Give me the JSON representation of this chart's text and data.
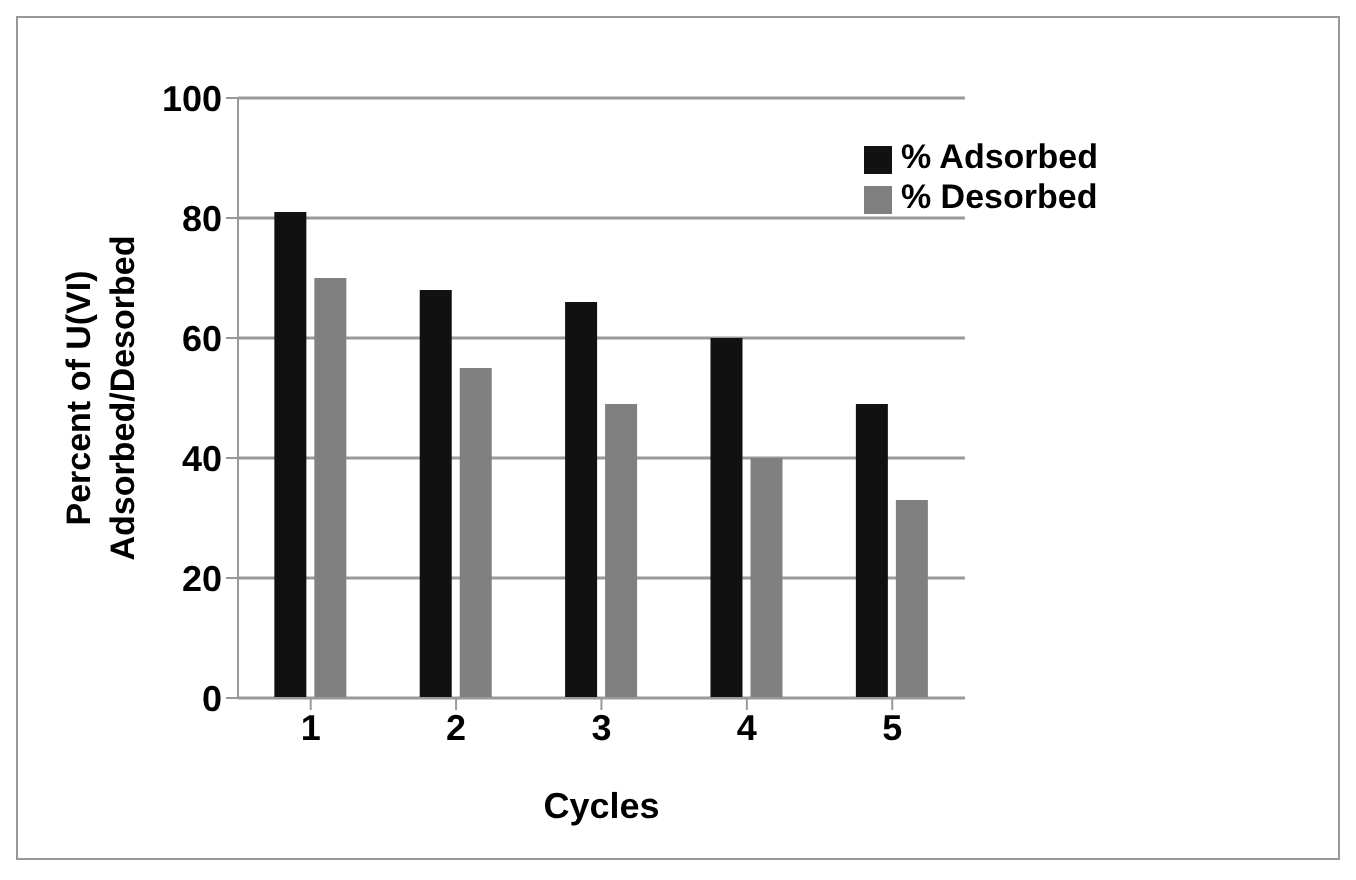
{
  "chart_data": {
    "type": "bar",
    "xlabel": "Cycles",
    "ylabel": "Percent of U(VI) Adsorbed/Desorbed",
    "categories": [
      "1",
      "2",
      "3",
      "4",
      "5"
    ],
    "series": [
      {
        "name": "% Adsorbed",
        "color": "#111111",
        "values": [
          81,
          68,
          66,
          60,
          49
        ]
      },
      {
        "name": "% Desorbed",
        "color": "#808080",
        "values": [
          70,
          55,
          49,
          40,
          33
        ]
      }
    ],
    "ylim": [
      0,
      100
    ],
    "yticks": [
      0,
      20,
      40,
      60,
      80,
      100
    ],
    "grid": "y",
    "legend": "top right"
  }
}
